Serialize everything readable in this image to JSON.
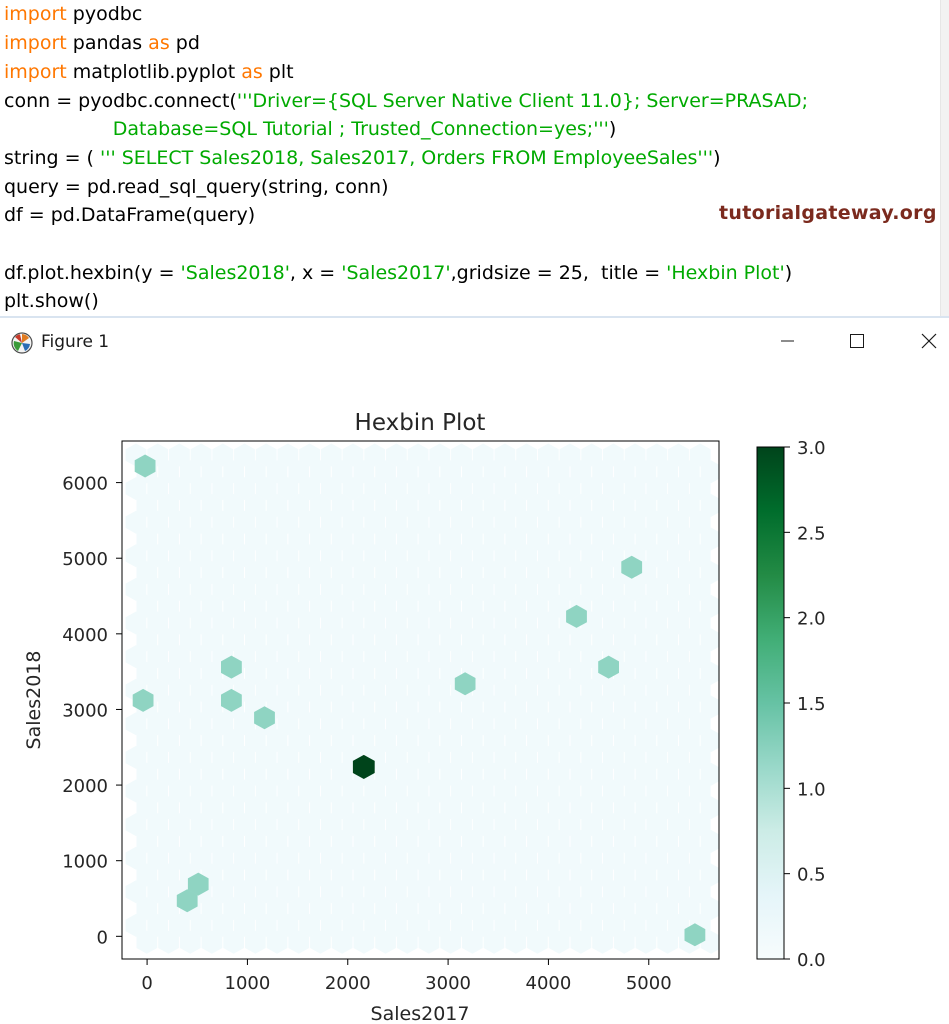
{
  "editor": {
    "lines": [
      [
        {
          "t": "import",
          "c": "kw"
        },
        {
          "t": " pyodbc",
          "c": ""
        }
      ],
      [
        {
          "t": "import",
          "c": "kw"
        },
        {
          "t": " pandas ",
          "c": ""
        },
        {
          "t": "as",
          "c": "kw"
        },
        {
          "t": " pd",
          "c": ""
        }
      ],
      [
        {
          "t": "import",
          "c": "kw"
        },
        {
          "t": " matplotlib.pyplot ",
          "c": ""
        },
        {
          "t": "as",
          "c": "kw"
        },
        {
          "t": " plt",
          "c": ""
        }
      ],
      [
        {
          "t": "conn = pyodbc.connect(",
          "c": ""
        },
        {
          "t": "'''Driver={SQL Server Native Client 11.0}; Server=PRASAD;",
          "c": "str"
        }
      ],
      [
        {
          "t": "                  ",
          "c": ""
        },
        {
          "t": "Database=SQL Tutorial ; Trusted_Connection=yes;'''",
          "c": "str"
        },
        {
          "t": ")",
          "c": ""
        }
      ],
      [
        {
          "t": "string = ( ",
          "c": ""
        },
        {
          "t": "''' SELECT Sales2018, Sales2017, Orders FROM EmployeeSales'''",
          "c": "str"
        },
        {
          "t": ")",
          "c": ""
        }
      ],
      [
        {
          "t": "query = pd.read_sql_query(string, conn)",
          "c": ""
        }
      ],
      [
        {
          "t": "df = pd.DataFrame(query)",
          "c": ""
        }
      ],
      [
        {
          "t": "",
          "c": ""
        }
      ],
      [
        {
          "t": "df.plot.hexbin(y = ",
          "c": ""
        },
        {
          "t": "'Sales2018'",
          "c": "str"
        },
        {
          "t": ", x = ",
          "c": ""
        },
        {
          "t": "'Sales2017'",
          "c": "str"
        },
        {
          "t": ",gridsize = 25,  title = ",
          "c": ""
        },
        {
          "t": "'Hexbin Plot'",
          "c": "str"
        },
        {
          "t": ")",
          "c": ""
        }
      ],
      [
        {
          "t": "plt.show()",
          "c": ""
        }
      ]
    ],
    "watermark": "tutorialgateway.org"
  },
  "window": {
    "title": "Figure 1",
    "app_icon": "matplotlib-logo-icon",
    "controls": [
      "minimize-icon",
      "maximize-icon",
      "close-icon"
    ]
  },
  "chart_data": {
    "type": "hexbin",
    "title": "Hexbin Plot",
    "xlabel": "Sales2017",
    "ylabel": "Sales2018",
    "xlim": [
      -250,
      5700
    ],
    "ylim": [
      -300,
      6550
    ],
    "xticks": [
      0,
      1000,
      2000,
      3000,
      4000,
      5000
    ],
    "yticks": [
      0,
      1000,
      2000,
      3000,
      4000,
      5000,
      6000
    ],
    "gridsize": 25,
    "colormap": "BuGn",
    "colorbar": {
      "min": 0.0,
      "max": 3.0,
      "ticks": [
        "0.0",
        "0.5",
        "1.0",
        "1.5",
        "2.0",
        "2.5",
        "3.0"
      ]
    },
    "points": [
      {
        "x": -20,
        "y": 6220,
        "count": 1
      },
      {
        "x": 4830,
        "y": 4880,
        "count": 1
      },
      {
        "x": 4280,
        "y": 4230,
        "count": 1
      },
      {
        "x": 4600,
        "y": 3560,
        "count": 1
      },
      {
        "x": 3170,
        "y": 3340,
        "count": 1
      },
      {
        "x": 840,
        "y": 3560,
        "count": 1
      },
      {
        "x": 840,
        "y": 3120,
        "count": 1
      },
      {
        "x": -40,
        "y": 3120,
        "count": 1
      },
      {
        "x": 1170,
        "y": 2890,
        "count": 1
      },
      {
        "x": 2160,
        "y": 2240,
        "count": 3
      },
      {
        "x": 510,
        "y": 690,
        "count": 1
      },
      {
        "x": 400,
        "y": 470,
        "count": 1
      },
      {
        "x": 5460,
        "y": 20,
        "count": 1
      }
    ]
  }
}
